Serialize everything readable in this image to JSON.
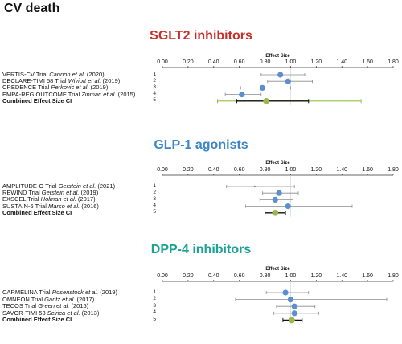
{
  "title": "CV death",
  "chart_data": [
    {
      "type": "forest",
      "title": "SGLT2 inhibitors",
      "title_color": "#c8302a",
      "xlabel": "Effect Size",
      "xlim": [
        0,
        1.8
      ],
      "ticks": [
        "0.00",
        "0.20",
        "0.40",
        "0.60",
        "0.80",
        "1.00",
        "1.20",
        "1.40",
        "1.60",
        "1.80"
      ],
      "studies": [
        {
          "num": "1",
          "trial": "VERTIS-CV Trial",
          "author": "Cannon et al.",
          "year": "(2020)",
          "estimate": 0.92,
          "lower": 0.77,
          "upper": 1.11
        },
        {
          "num": "2",
          "trial": "DECLARE-TIMI 58 Trial",
          "author": "Wiviott et al.",
          "year": "(2019)",
          "estimate": 0.98,
          "lower": 0.82,
          "upper": 1.17
        },
        {
          "num": "3",
          "trial": "CREDENCE Trial",
          "author": "Perkovic et al.",
          "year": "(2019)",
          "estimate": 0.78,
          "lower": 0.61,
          "upper": 1.0
        },
        {
          "num": "4",
          "trial": "EMPA-REG OUTCOME Trial",
          "author": "Zinman et al.",
          "year": "(2015)",
          "estimate": 0.62,
          "lower": 0.49,
          "upper": 0.77
        }
      ],
      "combined": {
        "num": "5",
        "label": "Combined Effect Size CI",
        "estimate": 0.81,
        "lower": 0.58,
        "upper": 1.14,
        "pi_lower": 0.43,
        "pi_upper": 1.55
      }
    },
    {
      "type": "forest",
      "title": "GLP-1 agonists",
      "title_color": "#3b86c6",
      "xlabel": "Effect Size",
      "xlim": [
        0,
        1.8
      ],
      "ticks": [
        "0.00",
        "0.20",
        "0.40",
        "0.60",
        "0.80",
        "1.00",
        "1.20",
        "1.40",
        "1.60",
        "1.80"
      ],
      "studies": [
        {
          "num": "1",
          "trial": "AMPLITUDE-O Trial",
          "author": "Gerstein et al.",
          "year": "(2021)",
          "estimate": 0.72,
          "lower": 0.5,
          "upper": 1.03
        },
        {
          "num": "2",
          "trial": "REWIND Trial",
          "author": "Gerstein et al.",
          "year": "(2019)",
          "estimate": 0.91,
          "lower": 0.78,
          "upper": 1.06
        },
        {
          "num": "3",
          "trial": "EXSCEL Trial",
          "author": "Holman et al.",
          "year": "(2017)",
          "estimate": 0.88,
          "lower": 0.76,
          "upper": 1.02
        },
        {
          "num": "4",
          "trial": "SUSTAIN-6 Trial",
          "author": "Marso et al.",
          "year": "(2016)",
          "estimate": 0.98,
          "lower": 0.65,
          "upper": 1.48
        }
      ],
      "combined": {
        "num": "5",
        "label": "Combined Effect Size CI",
        "estimate": 0.88,
        "lower": 0.8,
        "upper": 0.96
      }
    },
    {
      "type": "forest",
      "title": "DPP-4 inhibitors",
      "title_color": "#1aa394",
      "xlabel": "Effect Size",
      "xlim": [
        0,
        1.8
      ],
      "ticks": [
        "0.00",
        "0.20",
        "0.40",
        "0.60",
        "0.80",
        "1.00",
        "1.20",
        "1.40",
        "1.60",
        "1.80"
      ],
      "studies": [
        {
          "num": "1",
          "trial": "CARMELINA Trial",
          "author": "Rosenstock et al.",
          "year": "(2019)",
          "estimate": 0.96,
          "lower": 0.81,
          "upper": 1.14
        },
        {
          "num": "2",
          "trial": "OMNEON Trial",
          "author": "Gantz et al.",
          "year": "(2017)",
          "estimate": 1.0,
          "lower": 0.57,
          "upper": 1.75
        },
        {
          "num": "3",
          "trial": "TECOS Trial",
          "author": "Green et al.",
          "year": "(2015)",
          "estimate": 1.03,
          "lower": 0.89,
          "upper": 1.19
        },
        {
          "num": "4",
          "trial": "SAVOR-TIMI 53",
          "author": "Scirica et al.",
          "year": "(2013)",
          "estimate": 1.03,
          "lower": 0.87,
          "upper": 1.22
        }
      ],
      "combined": {
        "num": "5",
        "label": "Combined Effect Size CI",
        "estimate": 1.01,
        "lower": 0.94,
        "upper": 1.09
      }
    }
  ]
}
